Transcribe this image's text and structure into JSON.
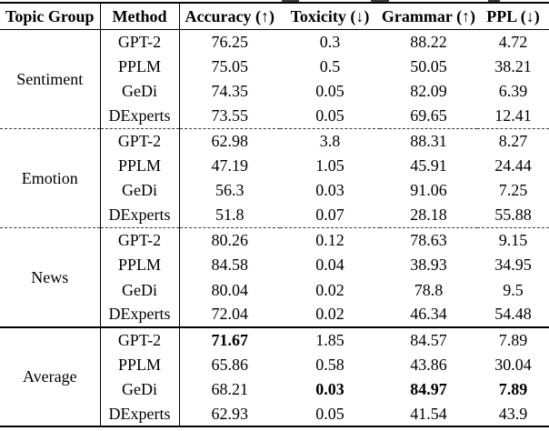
{
  "page": {
    "background": "#ffffff",
    "text_color": "#000000",
    "rule_color": "#000000"
  },
  "table": {
    "columns": [
      "Topic Group",
      "Method",
      "Accuracy (↑)",
      "Toxicity (↓)",
      "Grammar (↑)",
      "PPL (↓)"
    ],
    "groups": [
      {
        "label": "Sentiment",
        "separator": "dashed",
        "rows": [
          {
            "method": "GPT-2",
            "values": [
              "76.25",
              "0.3",
              "88.22",
              "4.72"
            ]
          },
          {
            "method": "PPLM",
            "values": [
              "75.05",
              "0.5",
              "50.05",
              "38.21"
            ]
          },
          {
            "method": "GeDi",
            "values": [
              "74.35",
              "0.05",
              "82.09",
              "6.39"
            ]
          },
          {
            "method": "DExperts",
            "values": [
              "73.55",
              "0.05",
              "69.65",
              "12.41"
            ]
          }
        ]
      },
      {
        "label": "Emotion",
        "separator": "dashed",
        "rows": [
          {
            "method": "GPT-2",
            "values": [
              "62.98",
              "3.8",
              "88.31",
              "8.27"
            ]
          },
          {
            "method": "PPLM",
            "values": [
              "47.19",
              "1.05",
              "45.91",
              "24.44"
            ]
          },
          {
            "method": "GeDi",
            "values": [
              "56.3",
              "0.03",
              "91.06",
              "7.25"
            ]
          },
          {
            "method": "DExperts",
            "values": [
              "51.8",
              "0.07",
              "28.18",
              "55.88"
            ]
          }
        ]
      },
      {
        "label": "News",
        "separator": "solid",
        "rows": [
          {
            "method": "GPT-2",
            "values": [
              "80.26",
              "0.12",
              "78.63",
              "9.15"
            ]
          },
          {
            "method": "PPLM",
            "values": [
              "84.58",
              "0.04",
              "38.93",
              "34.95"
            ]
          },
          {
            "method": "GeDi",
            "values": [
              "80.04",
              "0.02",
              "78.8",
              "9.5"
            ]
          },
          {
            "method": "DExperts",
            "values": [
              "72.04",
              "0.02",
              "46.34",
              "54.48"
            ]
          }
        ]
      },
      {
        "label": "Average",
        "separator": "none",
        "rows": [
          {
            "method": "GPT-2",
            "values": [
              "71.67",
              "1.85",
              "84.57",
              "7.89"
            ],
            "bold": [
              true,
              false,
              false,
              false
            ]
          },
          {
            "method": "PPLM",
            "values": [
              "65.86",
              "0.58",
              "43.86",
              "30.04"
            ]
          },
          {
            "method": "GeDi",
            "values": [
              "68.21",
              "0.03",
              "84.97",
              "7.89"
            ],
            "bold": [
              false,
              true,
              true,
              true
            ]
          },
          {
            "method": "DExperts",
            "values": [
              "62.93",
              "0.05",
              "41.54",
              "43.9"
            ]
          }
        ]
      }
    ]
  }
}
